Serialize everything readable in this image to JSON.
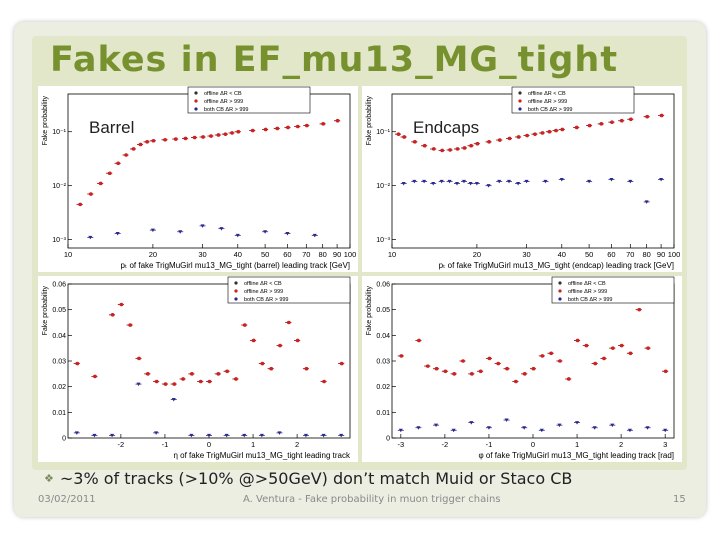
{
  "slide": {
    "title": "Fakes in EF_mu13_MG_tight",
    "bullet": "~3% of tracks (>10% @>50GeV) don’t match Muid or Staco CB",
    "footer": {
      "date": "03/02/2011",
      "center": "A. Ventura - Fake probability in muon trigger chains",
      "page": "15"
    }
  },
  "labels": {
    "barrel": "Barrel",
    "endcaps": "Endcaps"
  },
  "colors": {
    "title": "#76912e",
    "offline_cb": "#333333",
    "offline_dr": "#cc2222",
    "both": "#2a2a8a"
  },
  "chart_data": [
    {
      "type": "scatter",
      "region": "barrel",
      "xscale": "log",
      "yscale": "log",
      "xlim": [
        10,
        100
      ],
      "ylim": [
        0.0007,
        0.5
      ],
      "xticks": [
        "10",
        "20",
        "30",
        "40",
        "50",
        "60",
        "70",
        "80",
        "90",
        "100"
      ],
      "yticks": [
        "10⁻¹",
        "10⁻²",
        "10⁻³"
      ],
      "xlabel": "pₜ of fake TrigMuGirl mu13_MG_tight (barrel) leading track [GeV]",
      "ylabel": "Fake probability",
      "legend": [
        "offline ΔR < CB",
        "offline ΔR > 999",
        "both CB ΔR > 999"
      ],
      "series": [
        {
          "name": "offline ΔR < CB",
          "x": [
            11,
            12,
            13,
            14,
            15,
            16,
            17,
            18,
            19,
            20,
            22,
            24,
            26,
            28,
            30,
            32,
            34,
            36,
            38,
            40,
            45,
            50,
            55,
            60,
            65,
            70,
            80,
            90
          ],
          "y": [
            0.0045,
            0.007,
            0.011,
            0.017,
            0.026,
            0.037,
            0.048,
            0.058,
            0.065,
            0.068,
            0.071,
            0.073,
            0.075,
            0.078,
            0.08,
            0.083,
            0.087,
            0.09,
            0.095,
            0.1,
            0.105,
            0.11,
            0.115,
            0.12,
            0.125,
            0.13,
            0.14,
            0.16
          ]
        },
        {
          "name": "offline ΔR > 999",
          "x": [
            11,
            12,
            13,
            14,
            15,
            16,
            17,
            18,
            19,
            20,
            22,
            24,
            26,
            28,
            30,
            32,
            34,
            36,
            38,
            40,
            45,
            50,
            55,
            60,
            65,
            70,
            80,
            90
          ],
          "y": [
            0.0045,
            0.007,
            0.011,
            0.017,
            0.026,
            0.037,
            0.048,
            0.058,
            0.065,
            0.068,
            0.071,
            0.073,
            0.075,
            0.078,
            0.08,
            0.083,
            0.087,
            0.09,
            0.095,
            0.1,
            0.105,
            0.11,
            0.115,
            0.12,
            0.125,
            0.13,
            0.14,
            0.16
          ]
        },
        {
          "name": "both CB ΔR > 999",
          "x": [
            12,
            15,
            20,
            25,
            30,
            35,
            40,
            50,
            60,
            75
          ],
          "y": [
            0.0011,
            0.0013,
            0.0015,
            0.0014,
            0.0018,
            0.0016,
            0.0012,
            0.0014,
            0.0013,
            0.0012
          ]
        }
      ]
    },
    {
      "type": "scatter",
      "region": "endcaps",
      "xscale": "log",
      "yscale": "log",
      "xlim": [
        10,
        100
      ],
      "ylim": [
        0.0007,
        0.5
      ],
      "xticks": [
        "10",
        "20",
        "30",
        "40",
        "50",
        "60",
        "70",
        "80",
        "90",
        "100"
      ],
      "yticks": [
        "10⁻¹",
        "10⁻²",
        "10⁻³"
      ],
      "xlabel": "pₜ of fake TrigMuGirl mu13_MG_tight (endcap) leading track [GeV]",
      "ylabel": "Fake probability",
      "legend": [
        "offline ΔR < CB",
        "offline ΔR > 999",
        "both CB ΔR > 999"
      ],
      "series": [
        {
          "name": "offline ΔR < CB",
          "x": [
            10.5,
            11,
            12,
            13,
            14,
            15,
            16,
            17,
            18,
            19,
            20,
            22,
            24,
            26,
            28,
            30,
            32,
            34,
            36,
            38,
            40,
            45,
            50,
            55,
            60,
            65,
            70,
            80,
            90
          ],
          "y": [
            0.09,
            0.08,
            0.065,
            0.055,
            0.048,
            0.045,
            0.046,
            0.048,
            0.05,
            0.055,
            0.06,
            0.065,
            0.07,
            0.075,
            0.08,
            0.085,
            0.09,
            0.095,
            0.1,
            0.105,
            0.11,
            0.12,
            0.13,
            0.14,
            0.15,
            0.16,
            0.17,
            0.19,
            0.2
          ]
        },
        {
          "name": "offline ΔR > 999",
          "x": [
            10.5,
            11,
            12,
            13,
            14,
            15,
            16,
            17,
            18,
            19,
            20,
            22,
            24,
            26,
            28,
            30,
            32,
            34,
            36,
            38,
            40,
            45,
            50,
            55,
            60,
            65,
            70,
            80,
            90
          ],
          "y": [
            0.09,
            0.08,
            0.065,
            0.055,
            0.048,
            0.045,
            0.046,
            0.048,
            0.05,
            0.055,
            0.06,
            0.065,
            0.07,
            0.075,
            0.08,
            0.085,
            0.09,
            0.095,
            0.1,
            0.105,
            0.11,
            0.12,
            0.13,
            0.14,
            0.15,
            0.16,
            0.17,
            0.19,
            0.2
          ]
        },
        {
          "name": "both CB ΔR > 999",
          "x": [
            11,
            12,
            13,
            14,
            15,
            16,
            17,
            18,
            19,
            20,
            22,
            24,
            26,
            28,
            30,
            35,
            40,
            50,
            60,
            70,
            80,
            90
          ],
          "y": [
            0.011,
            0.012,
            0.012,
            0.011,
            0.012,
            0.012,
            0.011,
            0.012,
            0.011,
            0.011,
            0.01,
            0.012,
            0.012,
            0.011,
            0.012,
            0.012,
            0.013,
            0.012,
            0.013,
            0.012,
            0.005,
            0.013
          ]
        }
      ]
    },
    {
      "type": "scatter",
      "region": "barrel",
      "xlim": [
        -3.2,
        3.2
      ],
      "ylim": [
        0,
        0.06
      ],
      "xticks": [
        "-2",
        "-1",
        "0",
        "1",
        "2"
      ],
      "yticks": [
        "0",
        "0.01",
        "0.02",
        "0.03",
        "0.04",
        "0.05",
        "0.06"
      ],
      "xlabel": "η of fake TrigMuGirl mu13_MG_tight leading track",
      "ylabel": "Fake probability",
      "legend": [
        "offline ΔR < CB",
        "offline ΔR > 999",
        "both CB ΔR > 999"
      ],
      "series": [
        {
          "name": "offline ΔR < CB",
          "x": [
            -3.0,
            -2.6,
            -2.2,
            -2.0,
            -1.8,
            -1.6,
            -1.4,
            -1.2,
            -1.0,
            -0.8,
            -0.6,
            -0.4,
            -0.2,
            0,
            0.2,
            0.4,
            0.6,
            0.8,
            1.0,
            1.2,
            1.4,
            1.6,
            1.8,
            2.0,
            2.2,
            2.6,
            3.0
          ],
          "y": [
            0.029,
            0.024,
            0.048,
            0.052,
            0.044,
            0.031,
            0.025,
            0.022,
            0.021,
            0.021,
            0.023,
            0.025,
            0.022,
            0.022,
            0.025,
            0.026,
            0.023,
            0.044,
            0.038,
            0.029,
            0.027,
            0.036,
            0.045,
            0.038,
            0.027,
            0.022,
            0.029
          ]
        },
        {
          "name": "offline ΔR > 999",
          "x": [
            -3.0,
            -2.6,
            -2.2,
            -2.0,
            -1.8,
            -1.6,
            -1.4,
            -1.2,
            -1.0,
            -0.8,
            -0.6,
            -0.4,
            -0.2,
            0,
            0.2,
            0.4,
            0.6,
            0.8,
            1.0,
            1.2,
            1.4,
            1.6,
            1.8,
            2.0,
            2.2,
            2.6,
            3.0
          ],
          "y": [
            0.029,
            0.024,
            0.048,
            0.052,
            0.044,
            0.031,
            0.025,
            0.022,
            0.021,
            0.021,
            0.023,
            0.025,
            0.022,
            0.022,
            0.025,
            0.026,
            0.023,
            0.044,
            0.038,
            0.029,
            0.027,
            0.036,
            0.045,
            0.038,
            0.027,
            0.022,
            0.029
          ]
        },
        {
          "name": "both CB ΔR > 999",
          "x": [
            -3.0,
            -2.6,
            -2.2,
            -1.6,
            -1.2,
            -0.8,
            -0.4,
            0,
            0.4,
            0.8,
            1.2,
            1.6,
            2.2,
            2.6,
            3.0
          ],
          "y": [
            0.002,
            0.001,
            0.001,
            0.021,
            0.002,
            0.015,
            0.001,
            0.001,
            0.001,
            0.001,
            0.001,
            0.002,
            0.001,
            0.001,
            0.001
          ]
        }
      ]
    },
    {
      "type": "scatter",
      "region": "endcaps",
      "xlim": [
        -3.2,
        3.2
      ],
      "ylim": [
        0,
        0.06
      ],
      "xticks": [
        "-3",
        "-2",
        "-1",
        "0",
        "1",
        "2",
        "3"
      ],
      "yticks": [
        "0",
        "0.01",
        "0.02",
        "0.03",
        "0.04",
        "0.05",
        "0.06"
      ],
      "xlabel": "φ of fake TrigMuGirl mu13_MG_tight leading track [rad]",
      "ylabel": "Fake probability",
      "legend": [
        "offline ΔR < CB",
        "offline ΔR > 999",
        "both CB ΔR > 999"
      ],
      "series": [
        {
          "name": "offline ΔR < CB",
          "x": [
            -3.0,
            -2.6,
            -2.4,
            -2.2,
            -2.0,
            -1.8,
            -1.6,
            -1.4,
            -1.2,
            -1.0,
            -0.8,
            -0.6,
            -0.4,
            -0.2,
            0,
            0.2,
            0.4,
            0.6,
            0.8,
            1.0,
            1.2,
            1.4,
            1.6,
            1.8,
            2.0,
            2.2,
            2.4,
            2.6,
            3.0
          ],
          "y": [
            0.032,
            0.038,
            0.028,
            0.027,
            0.026,
            0.025,
            0.03,
            0.025,
            0.026,
            0.031,
            0.029,
            0.027,
            0.022,
            0.025,
            0.027,
            0.032,
            0.033,
            0.03,
            0.023,
            0.038,
            0.036,
            0.029,
            0.031,
            0.035,
            0.036,
            0.033,
            0.05,
            0.035,
            0.026
          ]
        },
        {
          "name": "offline ΔR > 999",
          "x": [
            -3.0,
            -2.6,
            -2.4,
            -2.2,
            -2.0,
            -1.8,
            -1.6,
            -1.4,
            -1.2,
            -1.0,
            -0.8,
            -0.6,
            -0.4,
            -0.2,
            0,
            0.2,
            0.4,
            0.6,
            0.8,
            1.0,
            1.2,
            1.4,
            1.6,
            1.8,
            2.0,
            2.2,
            2.4,
            2.6,
            3.0
          ],
          "y": [
            0.032,
            0.038,
            0.028,
            0.027,
            0.026,
            0.025,
            0.03,
            0.025,
            0.026,
            0.031,
            0.029,
            0.027,
            0.022,
            0.025,
            0.027,
            0.032,
            0.033,
            0.03,
            0.023,
            0.038,
            0.036,
            0.029,
            0.031,
            0.035,
            0.036,
            0.033,
            0.05,
            0.035,
            0.026
          ]
        },
        {
          "name": "both CB ΔR > 999",
          "x": [
            -3.0,
            -2.6,
            -2.2,
            -1.8,
            -1.4,
            -1.0,
            -0.6,
            -0.2,
            0.2,
            0.6,
            1.0,
            1.4,
            1.8,
            2.2,
            2.6,
            3.0
          ],
          "y": [
            0.003,
            0.004,
            0.005,
            0.003,
            0.006,
            0.004,
            0.007,
            0.004,
            0.003,
            0.005,
            0.006,
            0.004,
            0.005,
            0.003,
            0.004,
            0.003
          ]
        }
      ]
    }
  ]
}
